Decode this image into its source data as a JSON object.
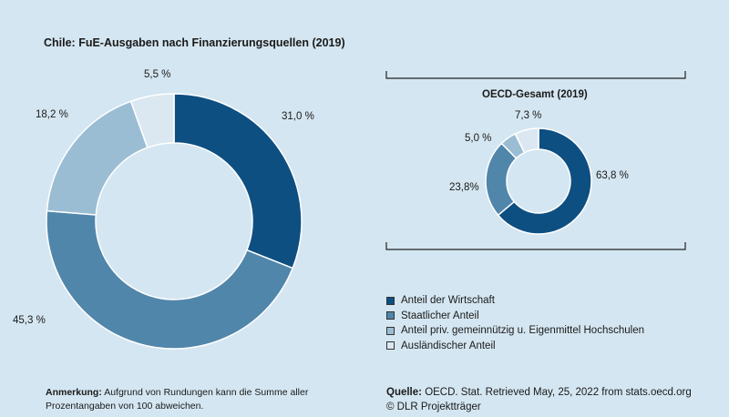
{
  "chart_data": [
    {
      "type": "pie",
      "title": "Chile: FuE-Ausgaben nach Finanzierungsquellen (2019)",
      "categories": [
        "Anteil der Wirtschaft",
        "Staatlicher Anteil",
        "Anteil priv. gemeinnützig u. Eigenmittel Hochschulen",
        "Ausländischer Anteil"
      ],
      "values": [
        31.0,
        45.3,
        18.2,
        5.5
      ],
      "labels": [
        "31,0 %",
        "45,3 %",
        "18,2 %",
        "5,5 %"
      ],
      "donut": true
    },
    {
      "type": "pie",
      "title": "OECD-Gesamt (2019)",
      "categories": [
        "Anteil der Wirtschaft",
        "Staatlicher Anteil",
        "Anteil priv. gemeinnützig u. Eigenmittel Hochschulen",
        "Ausländischer Anteil"
      ],
      "values": [
        63.8,
        23.8,
        5.0,
        7.3
      ],
      "labels": [
        "63,8 %",
        "23,8%",
        "5,0 %",
        "7,3 %"
      ],
      "donut": true
    }
  ],
  "colors": [
    "#0e4f82",
    "#5186ab",
    "#9abdd4",
    "#dbe8f1"
  ],
  "legend": {
    "items": [
      "Anteil der Wirtschaft",
      "Staatlicher Anteil",
      "Anteil priv. gemeinnützig u. Eigenmittel Hochschulen",
      "Ausländischer Anteil"
    ]
  },
  "note": {
    "label": "Anmerkung:",
    "line1": "Aufgrund von Rundungen kann die Summe aller",
    "line2": "Prozentangaben von 100 abweichen."
  },
  "source": {
    "label": "Quelle:",
    "line1": "OECD. Stat. Retrieved May, 25, 2022 from stats.oecd.org",
    "line2": "© DLR Projektträger"
  }
}
